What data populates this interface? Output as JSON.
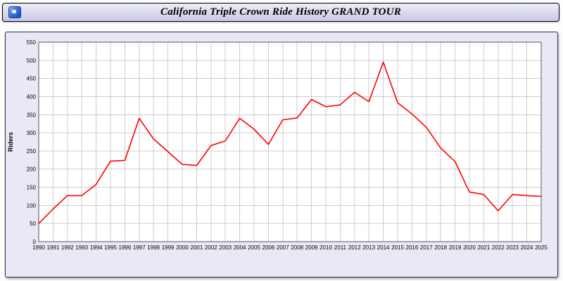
{
  "title_bar": {
    "title": "California Triple Crown Ride History GRAND TOUR",
    "icon": "app-icon"
  },
  "chart_data": {
    "type": "line",
    "title": "California Triple Crown Ride History GRAND TOUR",
    "xlabel": "",
    "ylabel": "Riders",
    "ylim": [
      0,
      550
    ],
    "ytick_step": 50,
    "grid": true,
    "legend": "none",
    "x": [
      1990,
      1991,
      1992,
      1993,
      1994,
      1995,
      1996,
      1997,
      1998,
      1999,
      2000,
      2001,
      2002,
      2003,
      2004,
      2005,
      2006,
      2007,
      2008,
      2009,
      2010,
      2011,
      2012,
      2013,
      2014,
      2015,
      2016,
      2017,
      2018,
      2019,
      2020,
      2021,
      2022,
      2023,
      2024,
      2025
    ],
    "series": [
      {
        "name": "Riders",
        "values": [
          50,
          90,
          127,
          127,
          158,
          222,
          224,
          340,
          283,
          248,
          213,
          210,
          265,
          278,
          340,
          310,
          268,
          336,
          341,
          392,
          372,
          377,
          412,
          386,
          495,
          383,
          352,
          315,
          258,
          221,
          137,
          130,
          85,
          130,
          127,
          125
        ]
      }
    ],
    "colors": {
      "line": "#ff0000",
      "plot_bg": "#ffffff",
      "grid": "#cccccc",
      "axis": "#555555",
      "panel_bg": "#e9e9f6"
    }
  }
}
